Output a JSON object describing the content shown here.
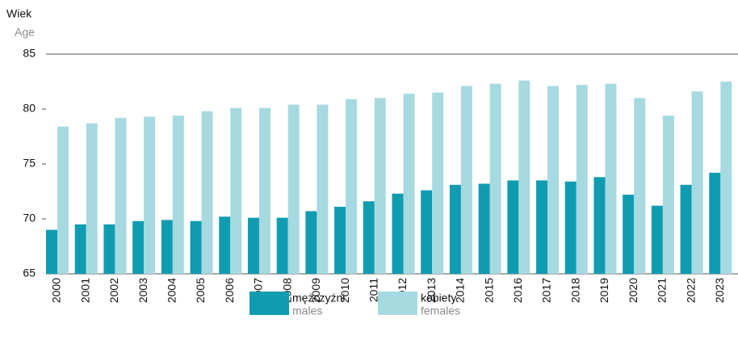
{
  "chart_data": {
    "type": "bar",
    "y_label": "Wiek",
    "y_label_en": "Age",
    "categories": [
      "2000",
      "2001",
      "2002",
      "2003",
      "2004",
      "2005",
      "2006",
      "2007",
      "2008",
      "2009",
      "2010",
      "2011",
      "2012",
      "2013",
      "2014",
      "2015",
      "2016",
      "2017",
      "2018",
      "2019",
      "2020",
      "2021",
      "2022",
      "2023"
    ],
    "series": [
      {
        "name": "mężczyźni",
        "name_en": "males",
        "color": "#0f9cb1",
        "values": [
          69.0,
          69.5,
          69.5,
          69.8,
          69.9,
          69.8,
          70.2,
          70.1,
          70.1,
          70.7,
          71.1,
          71.6,
          72.3,
          72.6,
          73.1,
          73.2,
          73.5,
          73.5,
          73.4,
          73.8,
          72.2,
          71.2,
          73.1,
          74.2
        ]
      },
      {
        "name": "kobiety",
        "name_en": "females",
        "color": "#a7d9e1",
        "values": [
          78.4,
          78.7,
          79.2,
          79.3,
          79.4,
          79.8,
          80.1,
          80.1,
          80.4,
          80.4,
          80.9,
          81.0,
          81.4,
          81.5,
          82.1,
          82.3,
          82.6,
          82.1,
          82.2,
          82.3,
          81.0,
          79.4,
          81.6,
          82.5
        ]
      }
    ],
    "ylim": [
      65,
      85
    ],
    "yticks": [
      65,
      70,
      75,
      80,
      85
    ]
  }
}
